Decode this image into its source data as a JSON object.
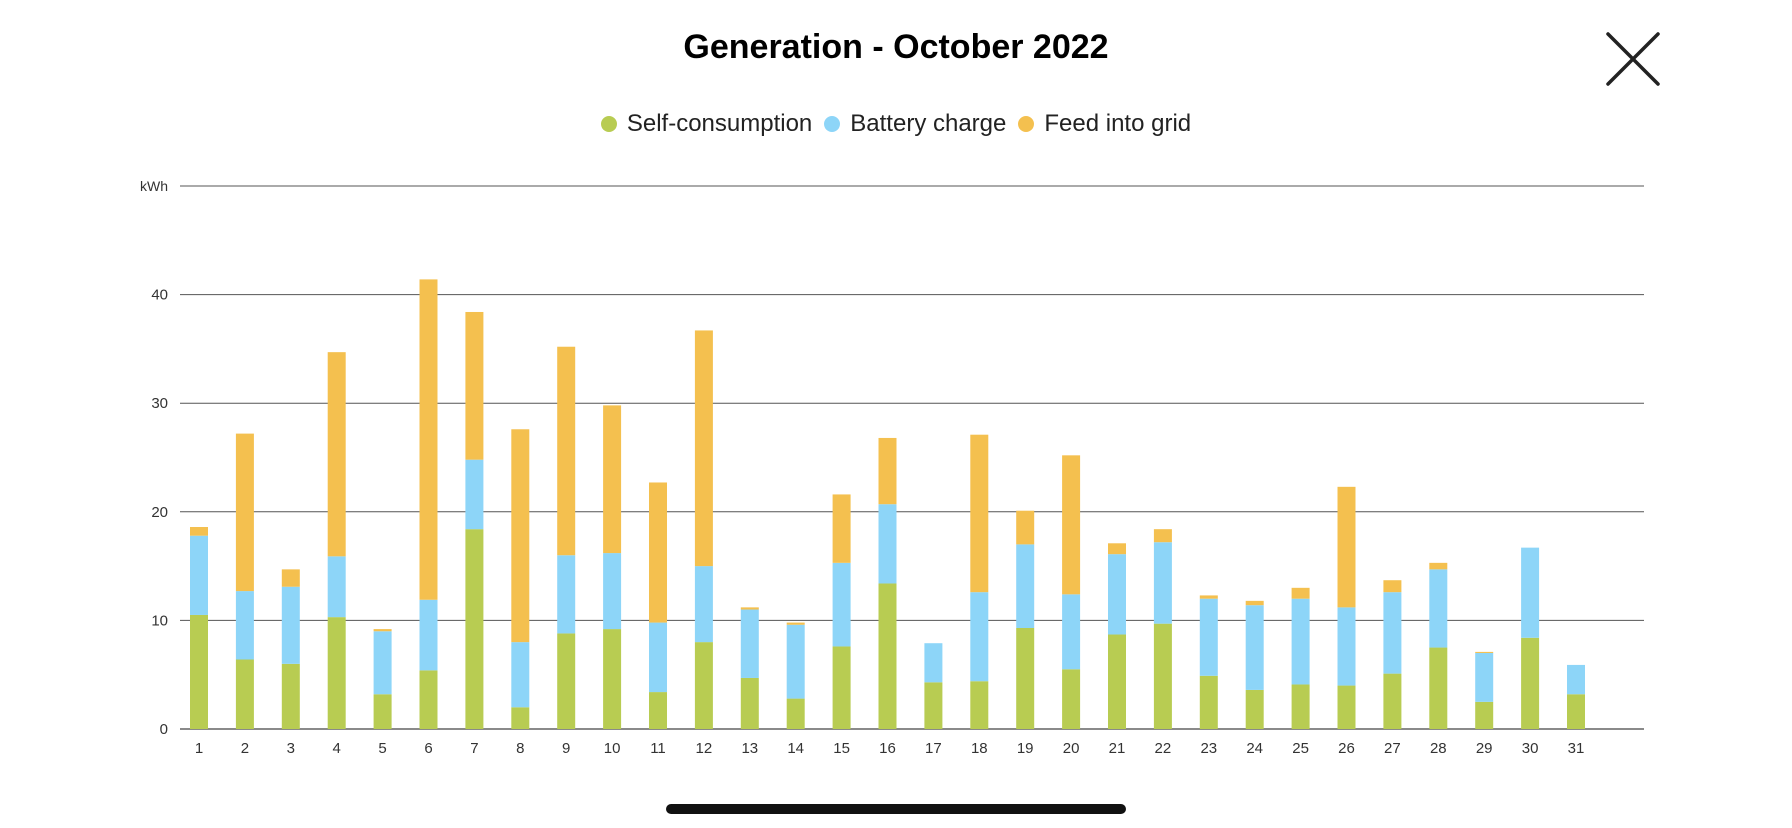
{
  "chart_data": {
    "type": "bar",
    "stacked": true,
    "title": "Generation - October 2022",
    "ylabel": "kWh",
    "xlabel": "",
    "ylim": [
      0,
      50
    ],
    "yticks": [
      0,
      10,
      20,
      30,
      40
    ],
    "grid": true,
    "legend_position": "top-center",
    "categories": [
      "1",
      "2",
      "3",
      "4",
      "5",
      "6",
      "7",
      "8",
      "9",
      "10",
      "11",
      "12",
      "13",
      "14",
      "15",
      "16",
      "17",
      "18",
      "19",
      "20",
      "21",
      "22",
      "23",
      "24",
      "25",
      "26",
      "27",
      "28",
      "29",
      "30",
      "31"
    ],
    "series": [
      {
        "name": "Self-consumption",
        "color": "#b8cc52",
        "values": [
          10.5,
          6.4,
          6.0,
          10.3,
          3.2,
          5.4,
          18.4,
          2.0,
          8.8,
          9.2,
          3.4,
          8.0,
          4.7,
          2.8,
          7.6,
          13.4,
          4.3,
          4.4,
          9.3,
          5.5,
          8.7,
          9.7,
          4.9,
          3.6,
          4.1,
          4.0,
          5.1,
          7.5,
          2.5,
          8.4,
          3.2
        ]
      },
      {
        "name": "Battery charge",
        "color": "#8dd5f8",
        "values": [
          7.3,
          6.3,
          7.1,
          5.6,
          5.8,
          6.5,
          6.4,
          6.0,
          7.2,
          7.0,
          6.4,
          7.0,
          6.3,
          6.8,
          7.7,
          7.3,
          3.6,
          8.2,
          7.7,
          6.9,
          7.4,
          7.5,
          7.1,
          7.8,
          7.9,
          7.2,
          7.5,
          7.2,
          4.5,
          8.3,
          2.7
        ]
      },
      {
        "name": "Feed into grid",
        "color": "#f4c04f",
        "values": [
          0.8,
          14.5,
          1.6,
          18.8,
          0.2,
          29.5,
          13.6,
          19.6,
          19.2,
          13.6,
          12.9,
          21.7,
          0.2,
          0.2,
          6.3,
          6.1,
          0,
          14.5,
          3.1,
          12.8,
          1.0,
          1.2,
          0.3,
          0.4,
          1.0,
          11.1,
          1.1,
          0.6,
          0.1,
          0,
          0
        ]
      }
    ]
  }
}
